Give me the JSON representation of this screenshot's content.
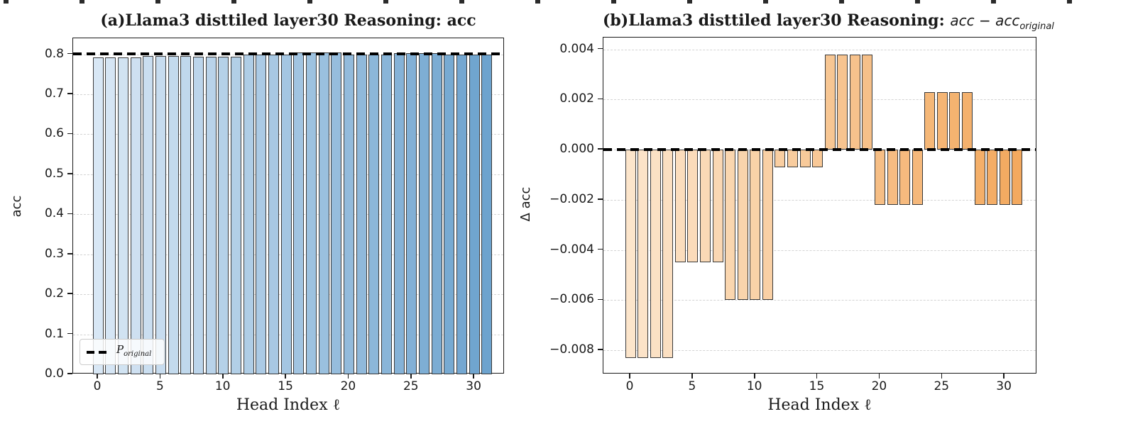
{
  "figure": {
    "background": "#ffffff",
    "frame_color": "#1a1a1a",
    "grid_color": "#d4d4d4",
    "reference_line_color": "#000000",
    "cropped_plot_remnant_color": "#2b2b2b"
  },
  "chart_data": [
    {
      "type": "bar",
      "panel": "a",
      "title": "(a)Llama3 disttiled layer30 Reasoning: acc",
      "xlabel": "Head Index ℓ",
      "ylabel": "acc",
      "x": [
        0,
        1,
        2,
        3,
        4,
        5,
        6,
        7,
        8,
        9,
        10,
        11,
        12,
        13,
        14,
        15,
        16,
        17,
        18,
        19,
        20,
        21,
        22,
        23,
        24,
        25,
        26,
        27,
        28,
        29,
        30,
        31
      ],
      "values": [
        0.7925,
        0.7925,
        0.7925,
        0.7925,
        0.7963,
        0.7963,
        0.7963,
        0.7963,
        0.7948,
        0.7948,
        0.7948,
        0.7948,
        0.8001,
        0.8001,
        0.8001,
        0.8001,
        0.8046,
        0.8046,
        0.8046,
        0.8046,
        0.7986,
        0.7986,
        0.7986,
        0.7986,
        0.8031,
        0.8031,
        0.8031,
        0.8031,
        0.7986,
        0.7986,
        0.7986,
        0.7986
      ],
      "ylim": [
        0,
        0.84
      ],
      "ytick_values": [
        0.0,
        0.1,
        0.2,
        0.3,
        0.4,
        0.5,
        0.6,
        0.7,
        0.8
      ],
      "ytick_labels": [
        "0.0",
        "0.1",
        "0.2",
        "0.3",
        "0.4",
        "0.5",
        "0.6",
        "0.7",
        "0.8"
      ],
      "xtick_values": [
        0,
        5,
        10,
        15,
        20,
        25,
        30
      ],
      "xtick_labels": [
        "0",
        "5",
        "10",
        "15",
        "20",
        "25",
        "30"
      ],
      "grid": true,
      "legend_position": "lower left",
      "legend": {
        "symbol": "dashed-line",
        "label_main": "P",
        "label_sub": "original"
      },
      "reference_line": {
        "value": 0.8008,
        "style": "dashed",
        "color": "#000000"
      },
      "bar_colormap": "Blues",
      "bar_color_start": "#d8e7f5",
      "bar_color_end": "#6da3ce",
      "bar_edge_color": "#3a3a3a"
    },
    {
      "type": "bar",
      "panel": "b",
      "title_prefix": "(b)Llama3 disttiled layer30 Reasoning: ",
      "title_math": "acc − acc",
      "title_math_sub": "original",
      "xlabel": "Head Index ℓ",
      "ylabel": "Δ acc",
      "x": [
        0,
        1,
        2,
        3,
        4,
        5,
        6,
        7,
        8,
        9,
        10,
        11,
        12,
        13,
        14,
        15,
        16,
        17,
        18,
        19,
        20,
        21,
        22,
        23,
        24,
        25,
        26,
        27,
        28,
        29,
        30,
        31
      ],
      "values": [
        -0.0083,
        -0.0083,
        -0.0083,
        -0.0083,
        -0.0045,
        -0.0045,
        -0.0045,
        -0.0045,
        -0.006,
        -0.006,
        -0.006,
        -0.006,
        -0.0007,
        -0.0007,
        -0.0007,
        -0.0007,
        0.0038,
        0.0038,
        0.0038,
        0.0038,
        -0.0022,
        -0.0022,
        -0.0022,
        -0.0022,
        0.0023,
        0.0023,
        0.0023,
        0.0023,
        -0.0022,
        -0.0022,
        -0.0022,
        -0.0022
      ],
      "ylim": [
        -0.00896,
        0.00447
      ],
      "ytick_values": [
        0.004,
        0.002,
        0.0,
        -0.002,
        -0.004,
        -0.006,
        -0.008
      ],
      "ytick_labels": [
        "0.004",
        "0.002",
        "0.000",
        "−0.002",
        "−0.004",
        "−0.006",
        "−0.008"
      ],
      "xtick_values": [
        0,
        5,
        10,
        15,
        20,
        25,
        30
      ],
      "xtick_labels": [
        "0",
        "5",
        "10",
        "15",
        "20",
        "25",
        "30"
      ],
      "grid": true,
      "reference_line": {
        "value": 0.0,
        "style": "dashed",
        "color": "#000000"
      },
      "bar_colormap": "Oranges",
      "bar_color_start": "#fce5cb",
      "bar_color_end": "#f3a95f",
      "bar_edge_color": "#3a3a3a"
    }
  ]
}
